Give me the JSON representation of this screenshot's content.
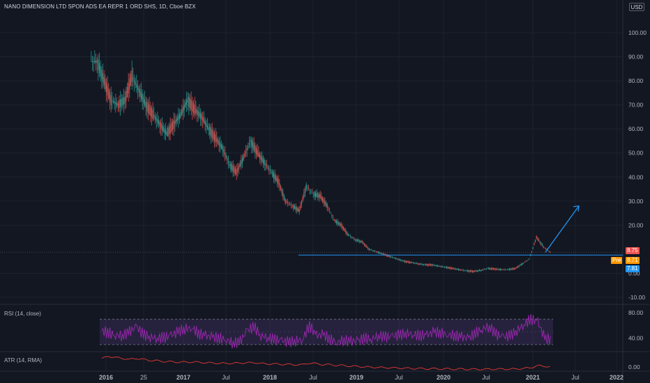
{
  "header": {
    "title": "NANO DIMENSION LTD SPON ADS EA REPR 1 ORD SHS, 1D, Cboe BZX",
    "currency_button": "USD"
  },
  "price_badges": {
    "last": "8.75",
    "pre_label": "Pre",
    "pre_value": "8.71",
    "other": "7.81"
  },
  "indicators": {
    "rsi_label": "RSI (14, close)",
    "atr_label": "ATR (14, RMA)"
  },
  "colors": {
    "background": "#131722",
    "up": "#26a69a",
    "down": "#ef5350",
    "rsi_line": "#9c27b0",
    "rsi_band": "#7e57c2",
    "atr_line": "#e53935",
    "arrow": "#2196f3",
    "last_badge": "#ef5350",
    "pre_badge": "#ff9800",
    "other_badge": "#2196f3"
  },
  "chart_data": [
    {
      "type": "candlestick",
      "title": "NANO DIMENSION LTD SPON ADS EA REPR 1 ORD SHS, 1D, Cboe BZX",
      "x_ticks": [
        "2016",
        "25",
        "2017",
        "Jul",
        "2018",
        "Jul",
        "2019",
        "Jul",
        "2020",
        "Jul",
        "2021",
        "Jul",
        "2022"
      ],
      "y_ticks": [
        "100.00",
        "90.00",
        "80.00",
        "70.00",
        "60.00",
        "50.00",
        "40.00",
        "30.00",
        "20.00",
        "0.00",
        "-10.00"
      ],
      "ylim": [
        -10,
        100
      ],
      "scale": "linear",
      "series": [
        {
          "dates": [
            "2015-11",
            "2015-12",
            "2016-01",
            "2016-02",
            "2016-03",
            "2016-04",
            "2016-05",
            "2016-06",
            "2016-07",
            "2016-08",
            "2016-09",
            "2016-10",
            "2016-11",
            "2016-12",
            "2017-01",
            "2017-02",
            "2017-03",
            "2017-04",
            "2017-05",
            "2017-06",
            "2017-07",
            "2017-08",
            "2017-09",
            "2017-10",
            "2017-11",
            "2017-12",
            "2018-01",
            "2018-02",
            "2018-03",
            "2018-04",
            "2018-05",
            "2018-06",
            "2018-07",
            "2018-08",
            "2018-09",
            "2018-10",
            "2018-11",
            "2018-12",
            "2019-01",
            "2019-02",
            "2019-03",
            "2019-04",
            "2019-05",
            "2019-06",
            "2019-07",
            "2019-08",
            "2019-09",
            "2019-10",
            "2019-11",
            "2019-12",
            "2020-01",
            "2020-02",
            "2020-03",
            "2020-04",
            "2020-05",
            "2020-06",
            "2020-07",
            "2020-08",
            "2020-09",
            "2020-10",
            "2020-11",
            "2020-12",
            "2021-01",
            "2021-02",
            "2021-03",
            "2021-04"
          ],
          "close": [
            88,
            80,
            72,
            70,
            72,
            82,
            76,
            70,
            66,
            62,
            58,
            62,
            66,
            72,
            68,
            65,
            60,
            56,
            52,
            45,
            42,
            48,
            55,
            50,
            46,
            42,
            38,
            30,
            28,
            26,
            36,
            33,
            32,
            28,
            22,
            20,
            16,
            14,
            13,
            10,
            9,
            8,
            7,
            6,
            5,
            4.5,
            4,
            3.5,
            3.5,
            3,
            2.5,
            2,
            1.5,
            1,
            0.8,
            1.2,
            2,
            1.8,
            1.5,
            1.6,
            2,
            4,
            6,
            15,
            11,
            8.75
          ]
        }
      ],
      "annotations": [
        {
          "type": "horizontal_line",
          "value": 8.75,
          "label": "8.75"
        },
        {
          "type": "arrow",
          "from": {
            "date": "2021-04",
            "value": 8.75
          },
          "to": {
            "date": "2021-08",
            "value": 28
          }
        }
      ]
    },
    {
      "type": "line",
      "name": "RSI (14, close)",
      "y_ticks": [
        "80.00",
        "40.00"
      ],
      "ylim": [
        20,
        90
      ],
      "band": [
        30,
        70
      ],
      "values": [
        52,
        48,
        45,
        44,
        50,
        58,
        46,
        42,
        40,
        41,
        44,
        50,
        55,
        57,
        47,
        44,
        42,
        40,
        38,
        32,
        35,
        52,
        58,
        44,
        41,
        38,
        36,
        34,
        36,
        38,
        60,
        44,
        46,
        38,
        34,
        37,
        35,
        36,
        40,
        39,
        44,
        42,
        43,
        45,
        48,
        46,
        44,
        45,
        50,
        48,
        46,
        44,
        42,
        40,
        48,
        55,
        58,
        46,
        42,
        44,
        52,
        62,
        70,
        66,
        40,
        38
      ]
    },
    {
      "type": "line",
      "name": "ATR (14, RMA)",
      "y_ticks": [
        "0.00"
      ],
      "ylim": [
        0,
        9
      ],
      "values": [
        6,
        7,
        6.5,
        6,
        5.5,
        6,
        5.5,
        5,
        4.8,
        4.5,
        4.3,
        4.2,
        4.1,
        4.3,
        4,
        3.9,
        3.7,
        3.6,
        3.5,
        3.6,
        3.7,
        3.8,
        3.9,
        3.5,
        3.3,
        3.2,
        3.1,
        3,
        2.9,
        2.8,
        3.8,
        3.3,
        3,
        2.8,
        2.6,
        2.4,
        2.2,
        2,
        1.8,
        1.6,
        1.5,
        1.4,
        1.3,
        1.2,
        1.1,
        1,
        0.95,
        0.9,
        0.85,
        0.8,
        0.75,
        0.7,
        0.7,
        0.65,
        0.6,
        0.6,
        0.65,
        0.7,
        0.7,
        0.7,
        0.8,
        1,
        1.4,
        2.4,
        2.1,
        1.8
      ]
    }
  ]
}
